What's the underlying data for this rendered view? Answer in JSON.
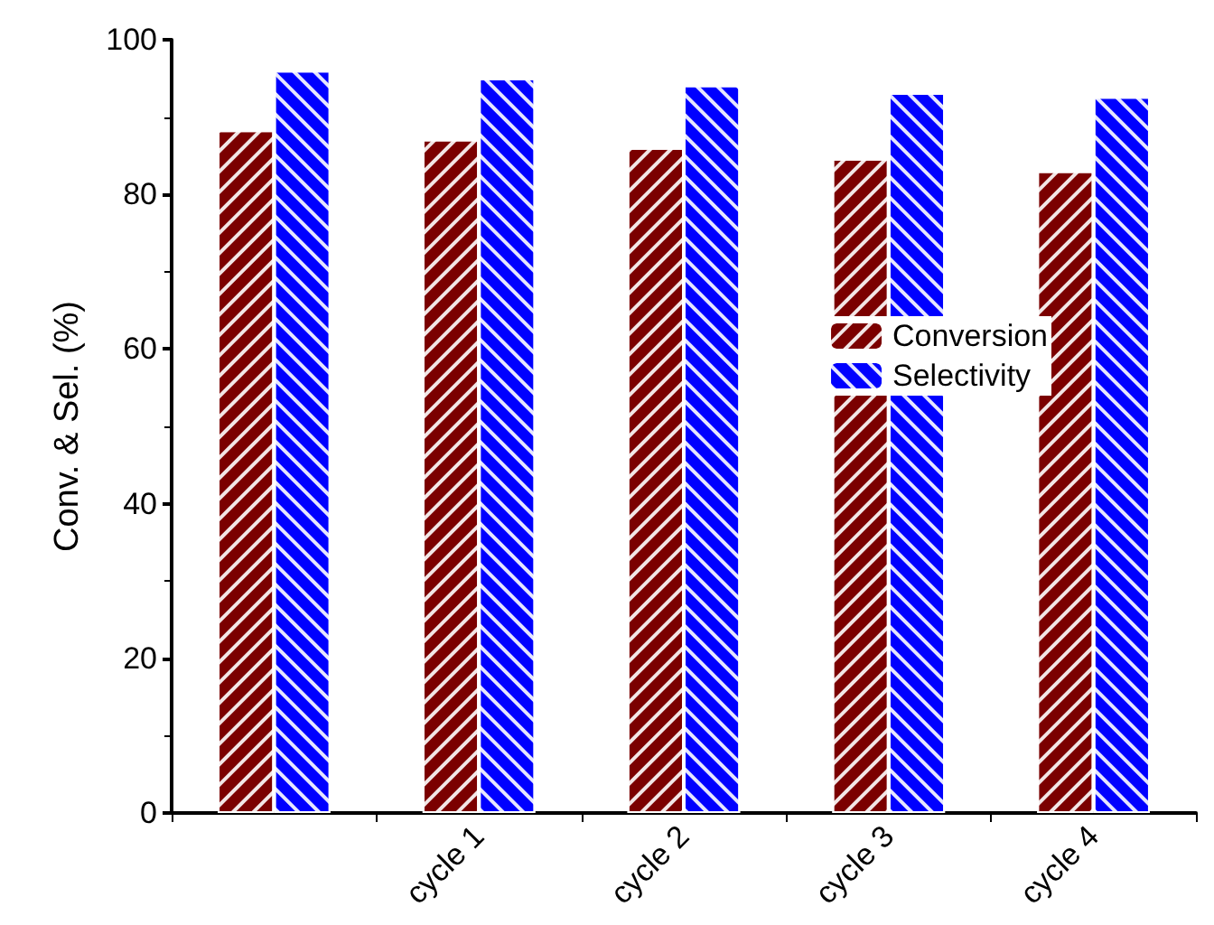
{
  "chart_data": {
    "type": "bar",
    "ylabel": "Conv. & Sel. (%)",
    "categories": [
      null,
      "cycle 1",
      "cycle 2",
      "cycle 3",
      "cycle 4"
    ],
    "series": [
      {
        "name": "Conversion",
        "color": "#7b0000",
        "values": [
          88.3,
          87.1,
          86.0,
          84.6,
          83.0
        ]
      },
      {
        "name": "Selectivity",
        "color": "#0000ff",
        "values": [
          96.0,
          95.0,
          94.1,
          93.1,
          92.6
        ]
      }
    ],
    "ylim": [
      0,
      100
    ],
    "yticks": [
      0,
      20,
      40,
      60,
      80,
      100
    ],
    "grid": false,
    "legend": "right"
  }
}
